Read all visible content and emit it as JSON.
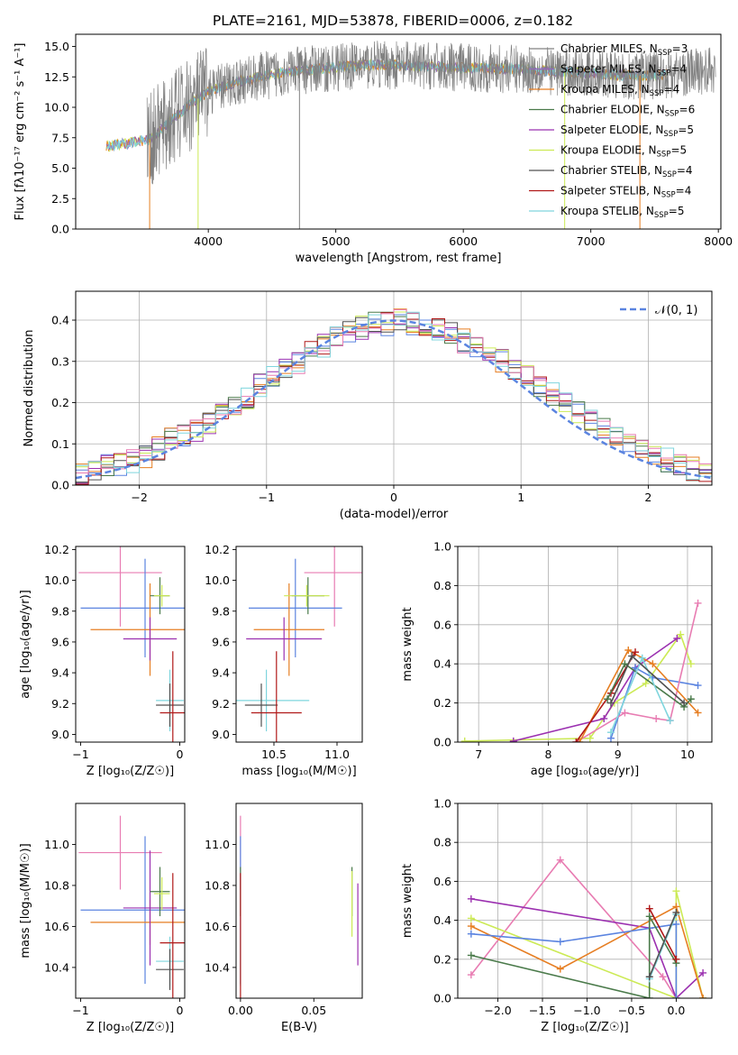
{
  "figure_title": "PLATE=2161, MJD=53878, FIBERID=0006, z=0.182",
  "colors": {
    "chabrier_miles": "#808080",
    "salpeter_miles": "#9467bd",
    "kroupa_miles": "#e67e22",
    "chabrier_elodie": "#4a7a4a",
    "salpeter_elodie": "#9b30b0",
    "kroupa_elodie": "#ccea55",
    "chabrier_stelib": "#505050",
    "salpeter_stelib": "#b01818",
    "kroupa_stelib": "#7fd5dd",
    "normal_curve": "#5b84e0",
    "blue_series": "#5b84e0",
    "pink_series": "#e87cb2",
    "grid": "#b0b0b0"
  },
  "chart_data": [
    {
      "id": "spectrum",
      "type": "line",
      "title": "PLATE=2161, MJD=53878, FIBERID=0006, z=0.182",
      "xlabel": "wavelength [Angstrom, rest frame]",
      "ylabel": "Flux [fλ10⁻¹⁷ erg cm⁻² s⁻¹ A⁻¹]",
      "xlim": [
        2960,
        8020
      ],
      "ylim": [
        0,
        16
      ],
      "xticks": [
        "4000",
        "5000",
        "6000",
        "7000",
        "8000"
      ],
      "yticks": [
        "0.0",
        "2.5",
        "5.0",
        "7.5",
        "10.0",
        "12.5",
        "15.0"
      ],
      "grid": false,
      "legend_position": "top-right",
      "continuum_x": [
        3200,
        3400,
        3550,
        3700,
        3850,
        4000,
        4200,
        4400,
        4600,
        4800,
        5000,
        5300,
        5600,
        5900,
        6200,
        6500,
        6800,
        7100,
        7400,
        7700,
        7900
      ],
      "continuum_y": [
        6.8,
        7.1,
        7.4,
        8.8,
        10.2,
        11.3,
        12.0,
        12.5,
        12.9,
        13.1,
        13.3,
        13.5,
        13.4,
        13.3,
        13.2,
        13.1,
        12.9,
        12.7,
        12.6,
        12.8,
        13.0
      ],
      "series": [
        {
          "name": "Chabrier MILES, N",
          "sub": "SSP",
          "suffix": "=3",
          "color_key": "chabrier_miles"
        },
        {
          "name": "Salpeter MILES, N",
          "sub": "SSP",
          "suffix": "=4",
          "color_key": "salpeter_miles"
        },
        {
          "name": "Kroupa MILES, N",
          "sub": "SSP",
          "suffix": "=4",
          "color_key": "kroupa_miles"
        },
        {
          "name": "Chabrier ELODIE, N",
          "sub": "SSP",
          "suffix": "=6",
          "color_key": "chabrier_elodie"
        },
        {
          "name": "Salpeter ELODIE, N",
          "sub": "SSP",
          "suffix": "=5",
          "color_key": "salpeter_elodie"
        },
        {
          "name": "Kroupa ELODIE, N",
          "sub": "SSP",
          "suffix": "=5",
          "color_key": "kroupa_elodie"
        },
        {
          "name": "Chabrier STELIB, N",
          "sub": "SSP",
          "suffix": "=4",
          "color_key": "chabrier_stelib"
        },
        {
          "name": "Salpeter STELIB, N",
          "sub": "SSP",
          "suffix": "=4",
          "color_key": "salpeter_stelib"
        },
        {
          "name": "Kroupa STELIB, N",
          "sub": "SSP",
          "suffix": "=5",
          "color_key": "kroupa_stelib"
        }
      ]
    },
    {
      "id": "residuals",
      "type": "line",
      "xlabel": "(data-model)/error",
      "ylabel": "Normed distribution",
      "xlim": [
        -2.5,
        2.5
      ],
      "ylim": [
        0,
        0.47
      ],
      "xticks": [
        "−2",
        "−1",
        "0",
        "1",
        "2"
      ],
      "yticks": [
        "0.0",
        "0.1",
        "0.2",
        "0.3",
        "0.4"
      ],
      "grid": true,
      "legend": "𝒩(0, 1)",
      "legend_position": "top-right",
      "bin_edges_start": -2.5,
      "bin_width": 0.1,
      "histogram_envelope": [
        0.03,
        0.04,
        0.045,
        0.05,
        0.06,
        0.07,
        0.09,
        0.11,
        0.12,
        0.13,
        0.15,
        0.17,
        0.19,
        0.21,
        0.24,
        0.26,
        0.28,
        0.3,
        0.32,
        0.34,
        0.36,
        0.37,
        0.38,
        0.39,
        0.39,
        0.4,
        0.39,
        0.39,
        0.38,
        0.37,
        0.35,
        0.34,
        0.32,
        0.3,
        0.28,
        0.26,
        0.24,
        0.22,
        0.2,
        0.18,
        0.16,
        0.14,
        0.12,
        0.11,
        0.09,
        0.08,
        0.06,
        0.05,
        0.04,
        0.035
      ]
    },
    {
      "id": "age_vs_Z",
      "type": "scatter",
      "xlabel": "Z [log₁₀(Z/Z☉)]",
      "ylabel": "age  [log₁₀(age/yr)]",
      "xlim": [
        -1.05,
        0.05
      ],
      "ylim": [
        8.95,
        10.22
      ],
      "xticks": [
        "−1",
        "0"
      ],
      "yticks": [
        "9.0",
        "9.2",
        "9.4",
        "9.6",
        "9.8",
        "10.0",
        "10.2"
      ],
      "points": [
        {
          "x": -0.6,
          "y": 10.05,
          "ex": 0.42,
          "ey": 0.35,
          "color_key": "pink_series"
        },
        {
          "x": -0.35,
          "y": 9.82,
          "ex": 0.65,
          "ey": 0.32,
          "color_key": "blue_series"
        },
        {
          "x": -0.3,
          "y": 9.68,
          "ex": 0.6,
          "ey": 0.3,
          "color_key": "kroupa_miles"
        },
        {
          "x": -0.3,
          "y": 9.62,
          "ex": 0.27,
          "ey": 0.14,
          "color_key": "salpeter_elodie"
        },
        {
          "x": -0.2,
          "y": 9.9,
          "ex": 0.1,
          "ey": 0.12,
          "color_key": "chabrier_elodie"
        },
        {
          "x": -0.18,
          "y": 9.9,
          "ex": 0.08,
          "ey": 0.07,
          "color_key": "kroupa_elodie"
        },
        {
          "x": -0.1,
          "y": 9.22,
          "ex": 0.14,
          "ey": 0.2,
          "color_key": "kroupa_stelib"
        },
        {
          "x": -0.1,
          "y": 9.19,
          "ex": 0.14,
          "ey": 0.14,
          "color_key": "chabrier_stelib"
        },
        {
          "x": -0.07,
          "y": 9.14,
          "ex": 0.13,
          "ey": 0.4,
          "color_key": "salpeter_stelib"
        }
      ]
    },
    {
      "id": "age_vs_mass",
      "type": "scatter",
      "xlabel": "mass [log₁₀(M/M☉)]",
      "ylabel": "",
      "xlim": [
        10.2,
        11.2
      ],
      "ylim": [
        8.95,
        10.22
      ],
      "xticks": [
        "10.5",
        "11.0"
      ],
      "yticks": [
        "9.0",
        "9.2",
        "9.4",
        "9.6",
        "9.8",
        "10.0",
        "10.2"
      ],
      "points": [
        {
          "x": 10.98,
          "y": 10.05,
          "ex": 0.24,
          "ey": 0.35,
          "color_key": "pink_series"
        },
        {
          "x": 10.67,
          "y": 9.82,
          "ex": 0.37,
          "ey": 0.32,
          "color_key": "blue_series"
        },
        {
          "x": 10.62,
          "y": 9.68,
          "ex": 0.28,
          "ey": 0.3,
          "color_key": "kroupa_miles"
        },
        {
          "x": 10.58,
          "y": 9.62,
          "ex": 0.3,
          "ey": 0.14,
          "color_key": "salpeter_elodie"
        },
        {
          "x": 10.77,
          "y": 9.9,
          "ex": 0.13,
          "ey": 0.12,
          "color_key": "chabrier_elodie"
        },
        {
          "x": 10.76,
          "y": 9.9,
          "ex": 0.18,
          "ey": 0.07,
          "color_key": "kroupa_elodie"
        },
        {
          "x": 10.44,
          "y": 9.22,
          "ex": 0.34,
          "ey": 0.2,
          "color_key": "kroupa_stelib"
        },
        {
          "x": 10.4,
          "y": 9.19,
          "ex": 0.13,
          "ey": 0.14,
          "color_key": "chabrier_stelib"
        },
        {
          "x": 10.52,
          "y": 9.14,
          "ex": 0.2,
          "ey": 0.4,
          "color_key": "salpeter_stelib"
        }
      ]
    },
    {
      "id": "weight_vs_age",
      "type": "line",
      "xlabel": "age  [log₁₀(age/yr)]",
      "ylabel": "mass weight",
      "xlim": [
        6.7,
        10.35
      ],
      "ylim": [
        0,
        1.0
      ],
      "xticks": [
        "7",
        "8",
        "9",
        "10"
      ],
      "yticks": [
        "0.0",
        "0.2",
        "0.4",
        "0.6",
        "0.8",
        "1.0"
      ],
      "grid": true,
      "series": [
        {
          "color_key": "kroupa_elodie",
          "x": [
            6.8,
            8.6,
            8.95,
            9.4,
            9.9,
            10.05
          ],
          "y": [
            0.005,
            0.02,
            0.2,
            0.3,
            0.55,
            0.4
          ]
        },
        {
          "color_key": "salpeter_elodie",
          "x": [
            7.5,
            8.8,
            9.25,
            9.85
          ],
          "y": [
            0.005,
            0.12,
            0.38,
            0.53
          ]
        },
        {
          "color_key": "blue_series",
          "x": [
            8.9,
            9.25,
            9.5,
            10.15
          ],
          "y": [
            0.02,
            0.38,
            0.33,
            0.29
          ]
        },
        {
          "color_key": "pink_series",
          "x": [
            8.4,
            9.1,
            9.55,
            9.75,
            10.15
          ],
          "y": [
            0.0,
            0.15,
            0.12,
            0.11,
            0.71
          ]
        },
        {
          "color_key": "kroupa_miles",
          "x": [
            8.45,
            9.15,
            9.5,
            10.15
          ],
          "y": [
            0.0,
            0.47,
            0.4,
            0.15
          ]
        },
        {
          "color_key": "salpeter_stelib",
          "x": [
            8.4,
            8.9,
            9.25
          ],
          "y": [
            0.0,
            0.25,
            0.46
          ]
        },
        {
          "color_key": "chabrier_elodie",
          "x": [
            8.85,
            9.1,
            9.95,
            10.05
          ],
          "y": [
            0.22,
            0.4,
            0.18,
            0.22
          ]
        },
        {
          "color_key": "kroupa_stelib",
          "x": [
            8.9,
            9.35,
            9.75
          ],
          "y": [
            0.05,
            0.43,
            0.11
          ]
        },
        {
          "color_key": "chabrier_stelib",
          "x": [
            8.9,
            9.2,
            9.95
          ],
          "y": [
            0.2,
            0.44,
            0.2
          ]
        }
      ]
    },
    {
      "id": "mass_vs_Z",
      "type": "scatter",
      "xlabel": "Z [log₁₀(Z/Z☉)]",
      "ylabel": "mass [log₁₀(M/M☉)]",
      "xlim": [
        -1.05,
        0.05
      ],
      "ylim": [
        10.25,
        11.2
      ],
      "xticks": [
        "−1",
        "0"
      ],
      "yticks": [
        "10.4",
        "10.6",
        "10.8",
        "11.0"
      ],
      "points": [
        {
          "x": -0.6,
          "y": 10.96,
          "ex": 0.42,
          "ey": 0.18,
          "color_key": "pink_series"
        },
        {
          "x": -0.35,
          "y": 10.68,
          "ex": 0.65,
          "ey": 0.36,
          "color_key": "blue_series"
        },
        {
          "x": -0.3,
          "y": 10.62,
          "ex": 0.6,
          "ey": 0.11,
          "color_key": "kroupa_miles"
        },
        {
          "x": -0.3,
          "y": 10.69,
          "ex": 0.27,
          "ey": 0.28,
          "color_key": "salpeter_elodie"
        },
        {
          "x": -0.2,
          "y": 10.77,
          "ex": 0.1,
          "ey": 0.12,
          "color_key": "chabrier_elodie"
        },
        {
          "x": -0.18,
          "y": 10.76,
          "ex": 0.08,
          "ey": 0.08,
          "color_key": "kroupa_elodie"
        },
        {
          "x": -0.1,
          "y": 10.43,
          "ex": 0.14,
          "ey": 0.12,
          "color_key": "kroupa_stelib"
        },
        {
          "x": -0.1,
          "y": 10.39,
          "ex": 0.14,
          "ey": 0.1,
          "color_key": "chabrier_stelib"
        },
        {
          "x": -0.07,
          "y": 10.52,
          "ex": 0.13,
          "ey": 0.34,
          "color_key": "salpeter_stelib"
        }
      ]
    },
    {
      "id": "mass_vs_ebv",
      "type": "scatter",
      "xlabel": "E(B-V)",
      "ylabel": "",
      "xlim": [
        -0.003,
        0.083
      ],
      "ylim": [
        10.25,
        11.2
      ],
      "xticks": [
        "0.00",
        "0.05"
      ],
      "yticks": [
        "10.4",
        "10.6",
        "10.8",
        "11.0"
      ],
      "points": [
        {
          "x": 0.0,
          "y": 10.96,
          "ex": 0.0,
          "ey": 0.18,
          "color_key": "pink_series"
        },
        {
          "x": 0.0,
          "y": 10.68,
          "ex": 0.0,
          "ey": 0.36,
          "color_key": "blue_series"
        },
        {
          "x": 0.0,
          "y": 10.77,
          "ex": 0.0,
          "ey": 0.12,
          "color_key": "chabrier_elodie"
        },
        {
          "x": 0.0,
          "y": 10.43,
          "ex": 0.0,
          "ey": 0.12,
          "color_key": "kroupa_stelib"
        },
        {
          "x": 0.0,
          "y": 10.52,
          "ex": 0.0,
          "ey": 0.34,
          "color_key": "salpeter_stelib"
        },
        {
          "x": 0.076,
          "y": 10.77,
          "ex": 0.0,
          "ey": 0.12,
          "color_key": "chabrier_elodie"
        },
        {
          "x": 0.076,
          "y": 10.71,
          "ex": 0.0,
          "ey": 0.16,
          "color_key": "kroupa_elodie"
        },
        {
          "x": 0.08,
          "y": 10.61,
          "ex": 0.0,
          "ey": 0.2,
          "color_key": "salpeter_elodie"
        }
      ]
    },
    {
      "id": "weight_vs_Z",
      "type": "line",
      "xlabel": "Z [log₁₀(Z/Z☉)]",
      "ylabel": "mass weight",
      "xlim": [
        -2.45,
        0.4
      ],
      "ylim": [
        0,
        1.0
      ],
      "xticks": [
        "−2.0",
        "−1.5",
        "−1.0",
        "−0.5",
        "0.0"
      ],
      "yticks": [
        "0.0",
        "0.2",
        "0.4",
        "0.6",
        "0.8",
        "1.0"
      ],
      "grid": true,
      "series": [
        {
          "color_key": "pink_series",
          "x": [
            -2.3,
            -1.3,
            -0.15,
            0.0
          ],
          "y": [
            0.12,
            0.71,
            0.11,
            0.0
          ]
        },
        {
          "color_key": "salpeter_elodie",
          "x": [
            -2.3,
            -0.3,
            0.0,
            0.3
          ],
          "y": [
            0.51,
            0.36,
            0.0,
            0.13
          ]
        },
        {
          "color_key": "kroupa_elodie",
          "x": [
            -2.3,
            0.0,
            0.0,
            0.3
          ],
          "y": [
            0.41,
            0.0,
            0.55,
            0.0
          ]
        },
        {
          "color_key": "kroupa_miles",
          "x": [
            -2.3,
            -1.3,
            0.0,
            0.3
          ],
          "y": [
            0.37,
            0.15,
            0.47,
            0.0
          ]
        },
        {
          "color_key": "blue_series",
          "x": [
            -2.3,
            -1.3,
            0.0,
            0.0
          ],
          "y": [
            0.33,
            0.29,
            0.38,
            0.0
          ]
        },
        {
          "color_key": "chabrier_elodie",
          "x": [
            -2.3,
            -0.3,
            -0.3,
            0.0
          ],
          "y": [
            0.22,
            0.0,
            0.42,
            0.18
          ]
        },
        {
          "color_key": "salpeter_stelib",
          "x": [
            -0.3,
            0.0
          ],
          "y": [
            0.46,
            0.2
          ]
        },
        {
          "color_key": "kroupa_stelib",
          "x": [
            -0.3,
            0.0
          ],
          "y": [
            0.1,
            0.43
          ]
        },
        {
          "color_key": "chabrier_stelib",
          "x": [
            -0.3,
            0.0
          ],
          "y": [
            0.11,
            0.44
          ]
        }
      ]
    }
  ]
}
